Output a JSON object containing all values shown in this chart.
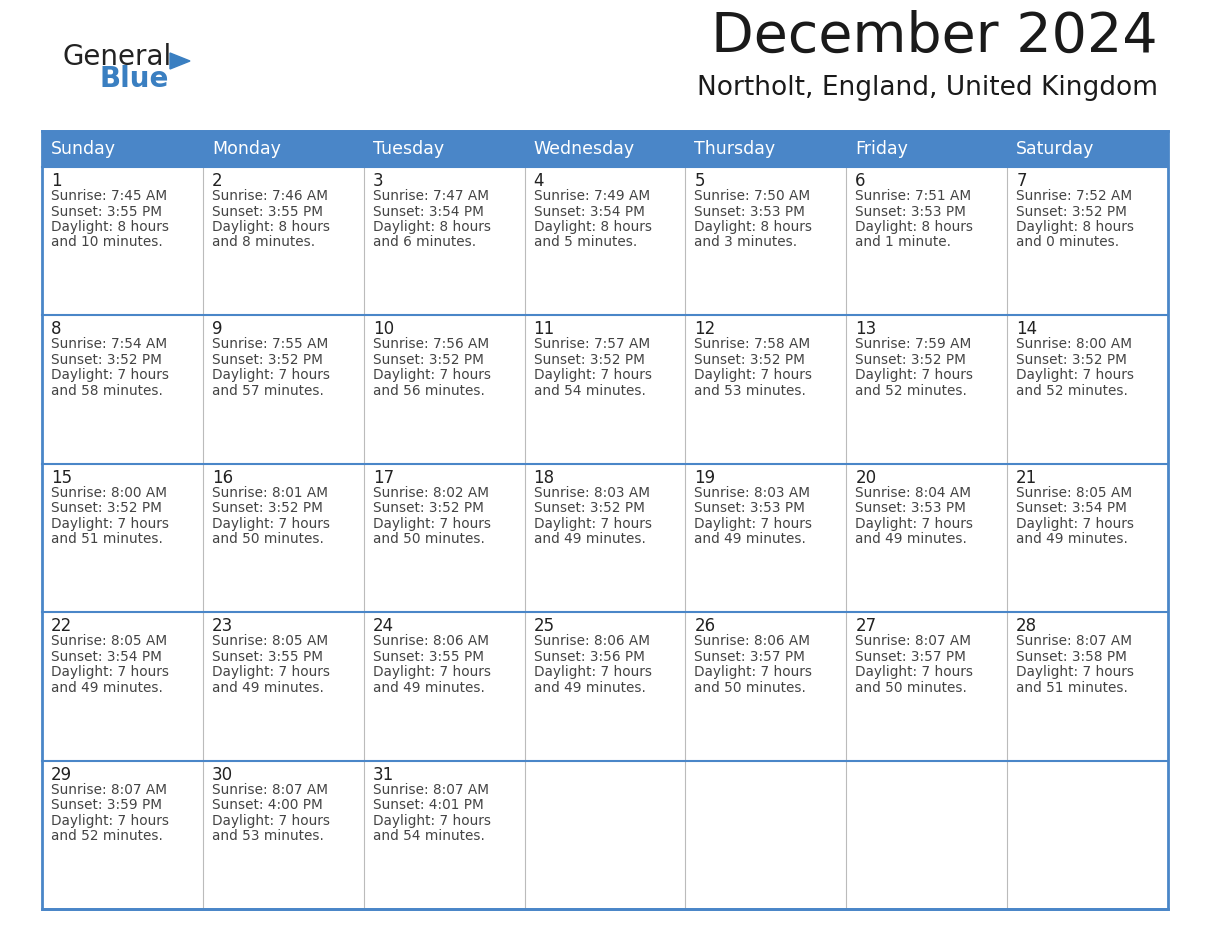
{
  "title": "December 2024",
  "subtitle": "Northolt, England, United Kingdom",
  "header_color": "#4a86c8",
  "header_text_color": "#ffffff",
  "cell_bg_color": "#ffffff",
  "border_color": "#4a86c8",
  "day_headers": [
    "Sunday",
    "Monday",
    "Tuesday",
    "Wednesday",
    "Thursday",
    "Friday",
    "Saturday"
  ],
  "weeks": [
    [
      {
        "day": "1",
        "sunrise": "7:45 AM",
        "sunset": "3:55 PM",
        "daylight_h": "8 hours",
        "daylight_m": "and 10 minutes."
      },
      {
        "day": "2",
        "sunrise": "7:46 AM",
        "sunset": "3:55 PM",
        "daylight_h": "8 hours",
        "daylight_m": "and 8 minutes."
      },
      {
        "day": "3",
        "sunrise": "7:47 AM",
        "sunset": "3:54 PM",
        "daylight_h": "8 hours",
        "daylight_m": "and 6 minutes."
      },
      {
        "day": "4",
        "sunrise": "7:49 AM",
        "sunset": "3:54 PM",
        "daylight_h": "8 hours",
        "daylight_m": "and 5 minutes."
      },
      {
        "day": "5",
        "sunrise": "7:50 AM",
        "sunset": "3:53 PM",
        "daylight_h": "8 hours",
        "daylight_m": "and 3 minutes."
      },
      {
        "day": "6",
        "sunrise": "7:51 AM",
        "sunset": "3:53 PM",
        "daylight_h": "8 hours",
        "daylight_m": "and 1 minute."
      },
      {
        "day": "7",
        "sunrise": "7:52 AM",
        "sunset": "3:52 PM",
        "daylight_h": "8 hours",
        "daylight_m": "and 0 minutes."
      }
    ],
    [
      {
        "day": "8",
        "sunrise": "7:54 AM",
        "sunset": "3:52 PM",
        "daylight_h": "7 hours",
        "daylight_m": "and 58 minutes."
      },
      {
        "day": "9",
        "sunrise": "7:55 AM",
        "sunset": "3:52 PM",
        "daylight_h": "7 hours",
        "daylight_m": "and 57 minutes."
      },
      {
        "day": "10",
        "sunrise": "7:56 AM",
        "sunset": "3:52 PM",
        "daylight_h": "7 hours",
        "daylight_m": "and 56 minutes."
      },
      {
        "day": "11",
        "sunrise": "7:57 AM",
        "sunset": "3:52 PM",
        "daylight_h": "7 hours",
        "daylight_m": "and 54 minutes."
      },
      {
        "day": "12",
        "sunrise": "7:58 AM",
        "sunset": "3:52 PM",
        "daylight_h": "7 hours",
        "daylight_m": "and 53 minutes."
      },
      {
        "day": "13",
        "sunrise": "7:59 AM",
        "sunset": "3:52 PM",
        "daylight_h": "7 hours",
        "daylight_m": "and 52 minutes."
      },
      {
        "day": "14",
        "sunrise": "8:00 AM",
        "sunset": "3:52 PM",
        "daylight_h": "7 hours",
        "daylight_m": "and 52 minutes."
      }
    ],
    [
      {
        "day": "15",
        "sunrise": "8:00 AM",
        "sunset": "3:52 PM",
        "daylight_h": "7 hours",
        "daylight_m": "and 51 minutes."
      },
      {
        "day": "16",
        "sunrise": "8:01 AM",
        "sunset": "3:52 PM",
        "daylight_h": "7 hours",
        "daylight_m": "and 50 minutes."
      },
      {
        "day": "17",
        "sunrise": "8:02 AM",
        "sunset": "3:52 PM",
        "daylight_h": "7 hours",
        "daylight_m": "and 50 minutes."
      },
      {
        "day": "18",
        "sunrise": "8:03 AM",
        "sunset": "3:52 PM",
        "daylight_h": "7 hours",
        "daylight_m": "and 49 minutes."
      },
      {
        "day": "19",
        "sunrise": "8:03 AM",
        "sunset": "3:53 PM",
        "daylight_h": "7 hours",
        "daylight_m": "and 49 minutes."
      },
      {
        "day": "20",
        "sunrise": "8:04 AM",
        "sunset": "3:53 PM",
        "daylight_h": "7 hours",
        "daylight_m": "and 49 minutes."
      },
      {
        "day": "21",
        "sunrise": "8:05 AM",
        "sunset": "3:54 PM",
        "daylight_h": "7 hours",
        "daylight_m": "and 49 minutes."
      }
    ],
    [
      {
        "day": "22",
        "sunrise": "8:05 AM",
        "sunset": "3:54 PM",
        "daylight_h": "7 hours",
        "daylight_m": "and 49 minutes."
      },
      {
        "day": "23",
        "sunrise": "8:05 AM",
        "sunset": "3:55 PM",
        "daylight_h": "7 hours",
        "daylight_m": "and 49 minutes."
      },
      {
        "day": "24",
        "sunrise": "8:06 AM",
        "sunset": "3:55 PM",
        "daylight_h": "7 hours",
        "daylight_m": "and 49 minutes."
      },
      {
        "day": "25",
        "sunrise": "8:06 AM",
        "sunset": "3:56 PM",
        "daylight_h": "7 hours",
        "daylight_m": "and 49 minutes."
      },
      {
        "day": "26",
        "sunrise": "8:06 AM",
        "sunset": "3:57 PM",
        "daylight_h": "7 hours",
        "daylight_m": "and 50 minutes."
      },
      {
        "day": "27",
        "sunrise": "8:07 AM",
        "sunset": "3:57 PM",
        "daylight_h": "7 hours",
        "daylight_m": "and 50 minutes."
      },
      {
        "day": "28",
        "sunrise": "8:07 AM",
        "sunset": "3:58 PM",
        "daylight_h": "7 hours",
        "daylight_m": "and 51 minutes."
      }
    ],
    [
      {
        "day": "29",
        "sunrise": "8:07 AM",
        "sunset": "3:59 PM",
        "daylight_h": "7 hours",
        "daylight_m": "and 52 minutes."
      },
      {
        "day": "30",
        "sunrise": "8:07 AM",
        "sunset": "4:00 PM",
        "daylight_h": "7 hours",
        "daylight_m": "and 53 minutes."
      },
      {
        "day": "31",
        "sunrise": "8:07 AM",
        "sunset": "4:01 PM",
        "daylight_h": "7 hours",
        "daylight_m": "and 54 minutes."
      },
      null,
      null,
      null,
      null
    ]
  ]
}
